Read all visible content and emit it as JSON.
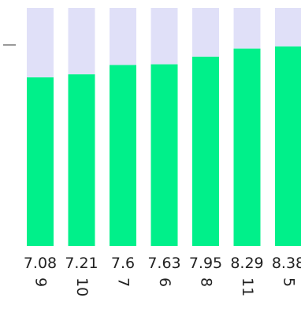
{
  "chart_data": {
    "type": "bar",
    "stacked_to_max": true,
    "categories": [
      "9",
      "10",
      "7",
      "6",
      "8",
      "11",
      "5"
    ],
    "values": [
      7.08,
      7.21,
      7.6,
      7.63,
      7.95,
      8.29,
      8.38
    ],
    "value_labels": [
      "7.08",
      "7.21",
      "7.6",
      "7.63",
      "7.95",
      "8.29",
      "8.38"
    ],
    "ylim": [
      0,
      10
    ],
    "title": "",
    "xlabel": "",
    "ylabel": "",
    "grid": false,
    "colors": {
      "value": "#00f08a",
      "remainder": "#e0e0f8",
      "text": "#222222",
      "axis": "#555555"
    }
  }
}
